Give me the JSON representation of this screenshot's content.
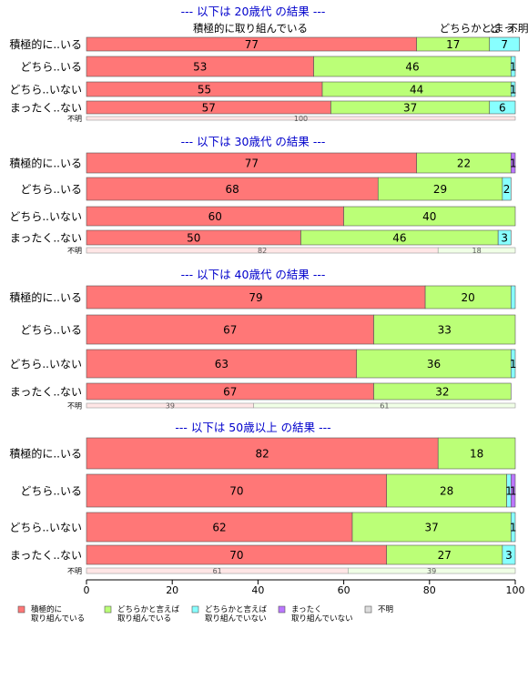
{
  "colors": {
    "active": "#ff7777",
    "somewhat_active": "#bbff77",
    "somewhat_inactive": "#88ffff",
    "inactive": "#bb77ff",
    "unknown": "#dddddd",
    "title": "#0000cc",
    "bar_border": "#555555"
  },
  "chart_data": {
    "type": "bar",
    "orientation": "horizontal",
    "stacked": true,
    "xlim": [
      0,
      100
    ],
    "x_ticks": [
      "0",
      "20",
      "40",
      "60",
      "80",
      "100"
    ],
    "legend_position": "bottom-left",
    "legend": [
      {
        "key": "active",
        "line1": "積極的に",
        "line2": "取り組んでいる"
      },
      {
        "key": "somewhat_active",
        "line1": "どちらかと言えば",
        "line2": "取り組んでいる"
      },
      {
        "key": "somewhat_inactive",
        "line1": "どちらかと言えば",
        "line2": "取り組んでいない"
      },
      {
        "key": "inactive",
        "line1": "まったく",
        "line2": "取り組んでいない"
      },
      {
        "key": "unknown",
        "line1": "不明",
        "line2": ""
      }
    ],
    "top_header_labels": [
      "積極的に取り組んでいる",
      "どちらかと..",
      "ど",
      "まっ..",
      "不明"
    ],
    "panels": [
      {
        "title": "--- 以下は 20歳代 の結果 ---",
        "rows": [
          {
            "label": "積極的に..いる",
            "values": [
              77,
              17,
              7,
              0,
              0
            ],
            "labels": [
              "77",
              "17",
              "7",
              "",
              ""
            ]
          },
          {
            "label": "どちら..いる",
            "values": [
              53,
              46,
              1,
              0,
              0
            ],
            "labels": [
              "53",
              "46",
              "1",
              "",
              ""
            ]
          },
          {
            "label": "どちら..いない",
            "values": [
              55,
              44,
              1,
              0,
              0
            ],
            "labels": [
              "55",
              "44",
              "1",
              "",
              ""
            ]
          },
          {
            "label": "まったく..ない",
            "values": [
              57,
              37,
              6,
              0,
              0
            ],
            "labels": [
              "57",
              "37",
              "6",
              "",
              ""
            ]
          },
          {
            "label": "不明",
            "values": [
              100,
              0,
              0,
              0,
              0
            ],
            "labels": [
              "100",
              "",
              "",
              "",
              ""
            ]
          }
        ]
      },
      {
        "title": "--- 以下は 30歳代 の結果 ---",
        "rows": [
          {
            "label": "積極的に..いる",
            "values": [
              77,
              22,
              0,
              1,
              0
            ],
            "labels": [
              "77",
              "22",
              "",
              "1",
              ""
            ]
          },
          {
            "label": "どちら..いる",
            "values": [
              68,
              29,
              2,
              0,
              0
            ],
            "labels": [
              "68",
              "29",
              "2",
              "",
              ""
            ]
          },
          {
            "label": "どちら..いない",
            "values": [
              60,
              40,
              0,
              0,
              0
            ],
            "labels": [
              "60",
              "40",
              "",
              "",
              ""
            ]
          },
          {
            "label": "まったく..ない",
            "values": [
              50,
              46,
              3,
              0,
              0
            ],
            "labels": [
              "50",
              "46",
              "3",
              "",
              ""
            ]
          },
          {
            "label": "不明",
            "values": [
              82,
              18,
              0,
              0,
              0
            ],
            "labels": [
              "82",
              "18",
              "",
              "",
              ""
            ]
          }
        ]
      },
      {
        "title": "--- 以下は 40歳代 の結果 ---",
        "rows": [
          {
            "label": "積極的に..いる",
            "values": [
              79,
              20,
              1,
              0,
              0
            ],
            "labels": [
              "79",
              "20",
              "",
              "",
              ""
            ]
          },
          {
            "label": "どちら..いる",
            "values": [
              67,
              33,
              0,
              0,
              0
            ],
            "labels": [
              "67",
              "33",
              "",
              "",
              ""
            ]
          },
          {
            "label": "どちら..いない",
            "values": [
              63,
              36,
              1,
              0,
              0
            ],
            "labels": [
              "63",
              "36",
              "1",
              "",
              ""
            ]
          },
          {
            "label": "まったく..ない",
            "values": [
              67,
              32,
              0,
              0,
              0
            ],
            "labels": [
              "67",
              "32",
              "",
              "",
              ""
            ]
          },
          {
            "label": "不明",
            "values": [
              39,
              61,
              0,
              0,
              0
            ],
            "labels": [
              "39",
              "61",
              "",
              "",
              ""
            ]
          }
        ]
      },
      {
        "title": "--- 以下は 50歳以上 の結果 ---",
        "rows": [
          {
            "label": "積極的に..いる",
            "values": [
              82,
              18,
              0,
              0,
              0
            ],
            "labels": [
              "82",
              "18",
              "",
              "",
              ""
            ]
          },
          {
            "label": "どちら..いる",
            "values": [
              70,
              28,
              1,
              1,
              0
            ],
            "labels": [
              "70",
              "28",
              "1",
              "1",
              ""
            ]
          },
          {
            "label": "どちら..いない",
            "values": [
              62,
              37,
              1,
              0,
              0
            ],
            "labels": [
              "62",
              "37",
              "1",
              "",
              ""
            ]
          },
          {
            "label": "まったく..ない",
            "values": [
              70,
              27,
              3,
              0,
              0
            ],
            "labels": [
              "70",
              "27",
              "3",
              "",
              ""
            ]
          },
          {
            "label": "不明",
            "values": [
              61,
              39,
              0,
              0,
              0
            ],
            "labels": [
              "61",
              "39",
              "",
              "",
              ""
            ]
          }
        ]
      }
    ]
  }
}
